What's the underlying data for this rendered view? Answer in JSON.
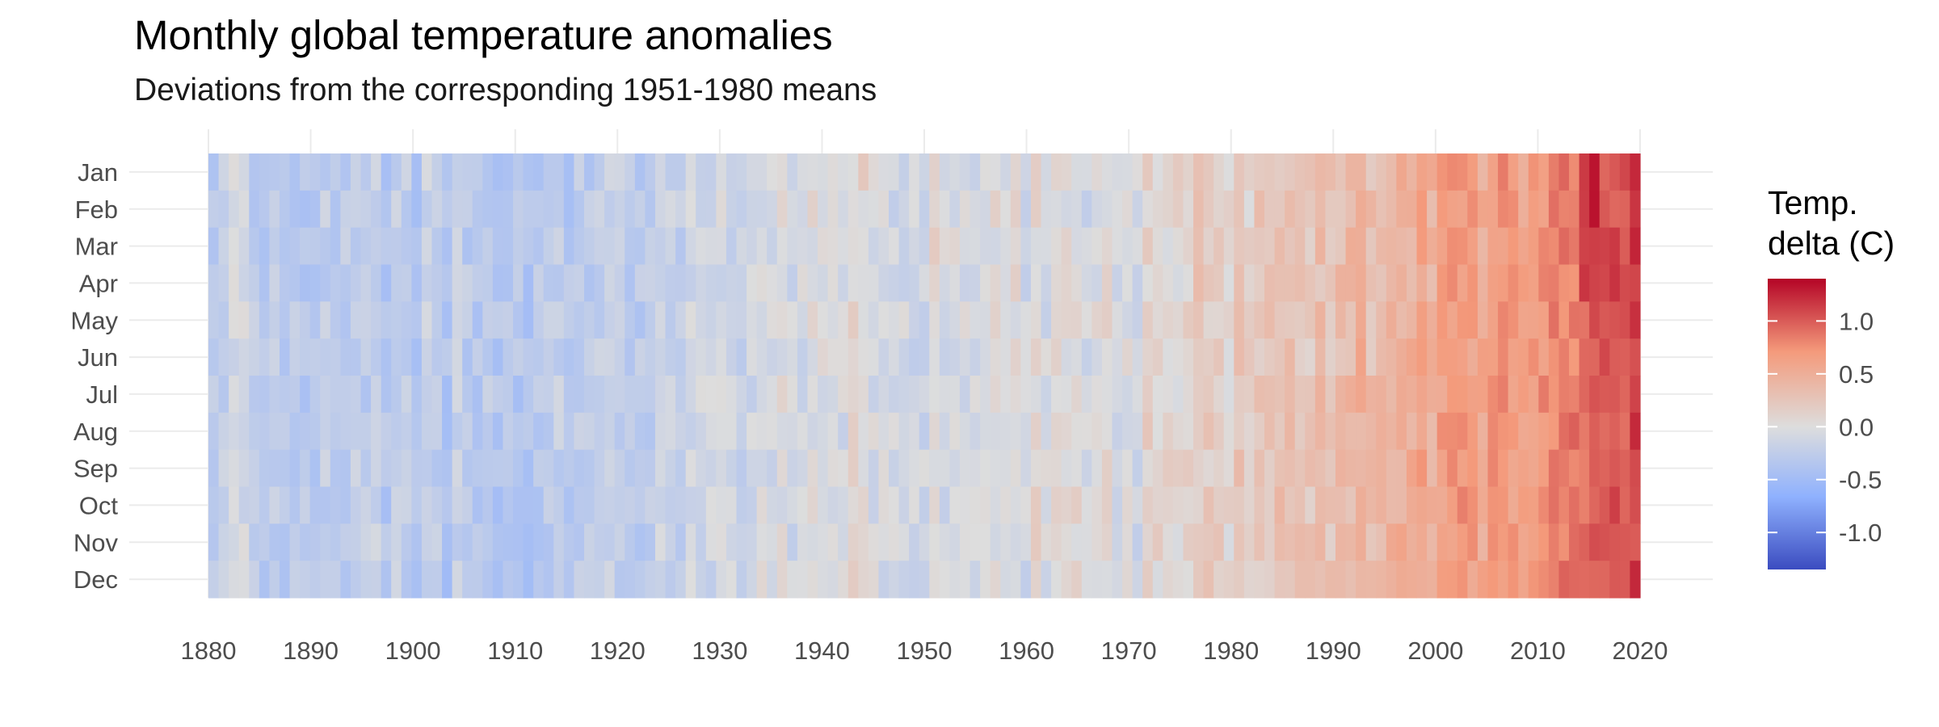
{
  "chart_data": {
    "type": "heatmap",
    "title": "Monthly global temperature anomalies",
    "subtitle": "Deviations from the corresponding 1951-1980 means",
    "xlabel": "",
    "ylabel": "",
    "x_ticks": [
      1880,
      1890,
      1900,
      1910,
      1920,
      1930,
      1940,
      1950,
      1960,
      1970,
      1980,
      1990,
      2000,
      2010,
      2020
    ],
    "xlim": [
      1880,
      2020
    ],
    "months": [
      "Jan",
      "Feb",
      "Mar",
      "Apr",
      "May",
      "Jun",
      "Jul",
      "Aug",
      "Sep",
      "Oct",
      "Nov",
      "Dec"
    ],
    "legend": {
      "title_line1": "Temp.",
      "title_line2": "delta (C)",
      "placement": "right",
      "ticks": [
        1.0,
        0.5,
        0.0,
        -0.5,
        -1.0
      ],
      "tick_labels": [
        "1.0",
        "0.5",
        "0.0",
        "-0.5",
        "-1.0"
      ],
      "range": [
        -1.35,
        1.4
      ]
    },
    "color_scale": {
      "low": "#3b4cc0",
      "mid": "#dddddd",
      "high": "#b40426"
    },
    "grid": true,
    "decade_mean_anomaly": [
      {
        "decade": 1880,
        "value": -0.2
      },
      {
        "decade": 1890,
        "value": -0.24
      },
      {
        "decade": 1900,
        "value": -0.28
      },
      {
        "decade": 1910,
        "value": -0.34
      },
      {
        "decade": 1920,
        "value": -0.25
      },
      {
        "decade": 1930,
        "value": -0.13
      },
      {
        "decade": 1940,
        "value": 0.04
      },
      {
        "decade": 1950,
        "value": -0.04
      },
      {
        "decade": 1960,
        "value": -0.01
      },
      {
        "decade": 1970,
        "value": -0.02
      },
      {
        "decade": 1980,
        "value": 0.18
      },
      {
        "decade": 1990,
        "value": 0.31
      },
      {
        "decade": 2000,
        "value": 0.53
      },
      {
        "decade": 2010,
        "value": 0.7
      },
      {
        "decade": 2020,
        "value": 1.05
      }
    ]
  }
}
